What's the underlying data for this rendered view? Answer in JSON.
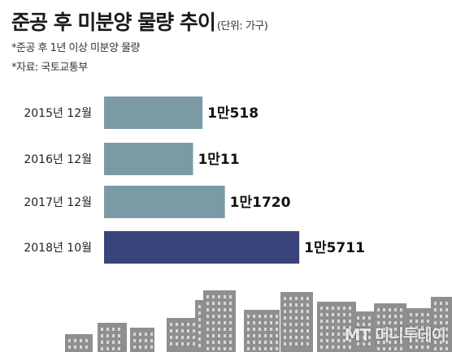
{
  "header": {
    "title": "준공 후 미분양 물량 추이",
    "unit": "(단위: 가구)",
    "notes": [
      "*준공 후 1년 이상 미분양 물량",
      "*자료: 국토교통부"
    ]
  },
  "watermark": "MT 머니투데이",
  "colors": {
    "bar": "#7b9ba4",
    "bar_highlight": "#3a437a",
    "buildings": "#8f8f8f"
  },
  "chart_data": {
    "type": "bar",
    "orientation": "horizontal",
    "categories": [
      "2015년 12월",
      "2016년 12월",
      "2017년 12월",
      "2018년 10월"
    ],
    "values": [
      10518,
      10011,
      11720,
      15711
    ],
    "value_labels": [
      "1만518",
      "1만11",
      "1만1720",
      "1만5711"
    ],
    "highlight_index": 3,
    "title": "준공 후 미분양 물량 추이",
    "unit": "가구",
    "grid": false
  }
}
